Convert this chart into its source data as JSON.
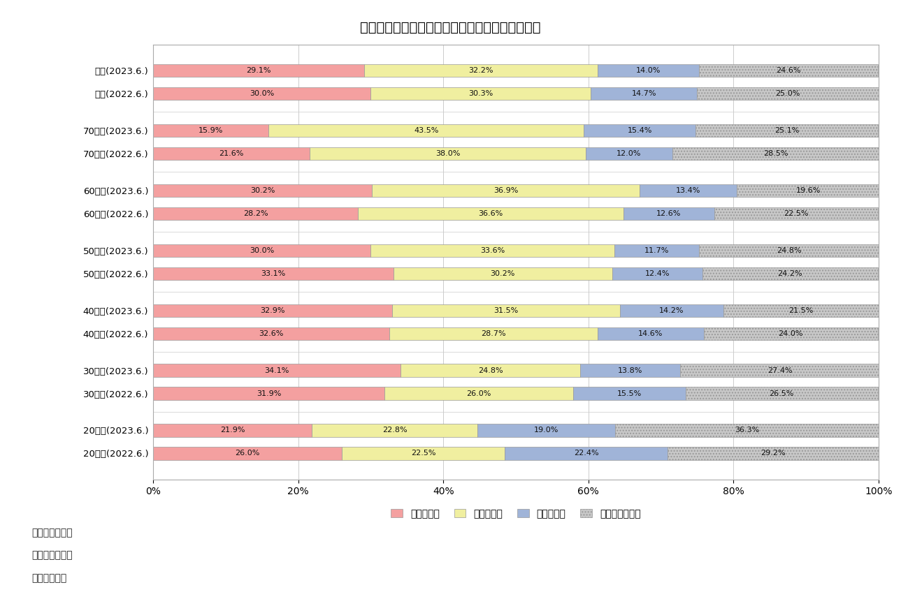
{
  "title": "図表５　年代別にみた自家用車の利用頻度の変化",
  "categories": [
    "全体(2022.6.)",
    "全体(2023.6.)",
    "70歳代(2022.6.)",
    "70歳代(2023.6.)",
    "60歳代(2022.6.)",
    "60歳代(2023.6.)",
    "50歳代(2022.6.)",
    "50歳代(2023.6.)",
    "40歳代(2022.6.)",
    "40歳代(2023.6.)",
    "30歳代(2022.6.)",
    "30歳代(2023.6.)",
    "20歳代(2022.6.)",
    "20歳代(2023.6.)"
  ],
  "series": {
    "週５回以上": [
      30.0,
      29.1,
      21.6,
      15.9,
      28.2,
      30.2,
      33.1,
      30.0,
      32.6,
      32.9,
      31.9,
      34.1,
      26.0,
      21.9
    ],
    "週１〜４回": [
      30.3,
      32.2,
      38.0,
      43.5,
      36.6,
      36.9,
      30.2,
      33.6,
      28.7,
      31.5,
      26.0,
      24.8,
      22.5,
      22.8
    ],
    "月３回以下": [
      14.7,
      14.0,
      12.0,
      15.4,
      12.6,
      13.4,
      12.4,
      11.7,
      14.6,
      14.2,
      15.5,
      13.8,
      22.4,
      19.0
    ],
    "未利用・非該当": [
      25.0,
      24.6,
      28.5,
      25.1,
      22.5,
      19.6,
      24.2,
      24.8,
      24.0,
      21.5,
      26.5,
      27.4,
      29.2,
      36.3
    ]
  },
  "colors": {
    "週５回以上": "#F4A0A0",
    "週１〜４回": "#F0EFA0",
    "月３回以下": "#A0B4D8",
    "未利用・非該当": "#C8C8C8"
  },
  "legend_labels": [
    "週５回以上",
    "週１〜４回",
    "月３回以下",
    "未利用・非該当"
  ],
  "footnotes": [
    "（備考１）同上",
    "（備考２）同上",
    "（資料）同上"
  ],
  "xlim": [
    0,
    100
  ],
  "xlabel_ticks": [
    0,
    20,
    40,
    60,
    80,
    100
  ],
  "background_color": "#ffffff",
  "chart_bg": "#ffffff",
  "border_color": "#aaaaaa",
  "group_size": 2,
  "num_groups": 7
}
